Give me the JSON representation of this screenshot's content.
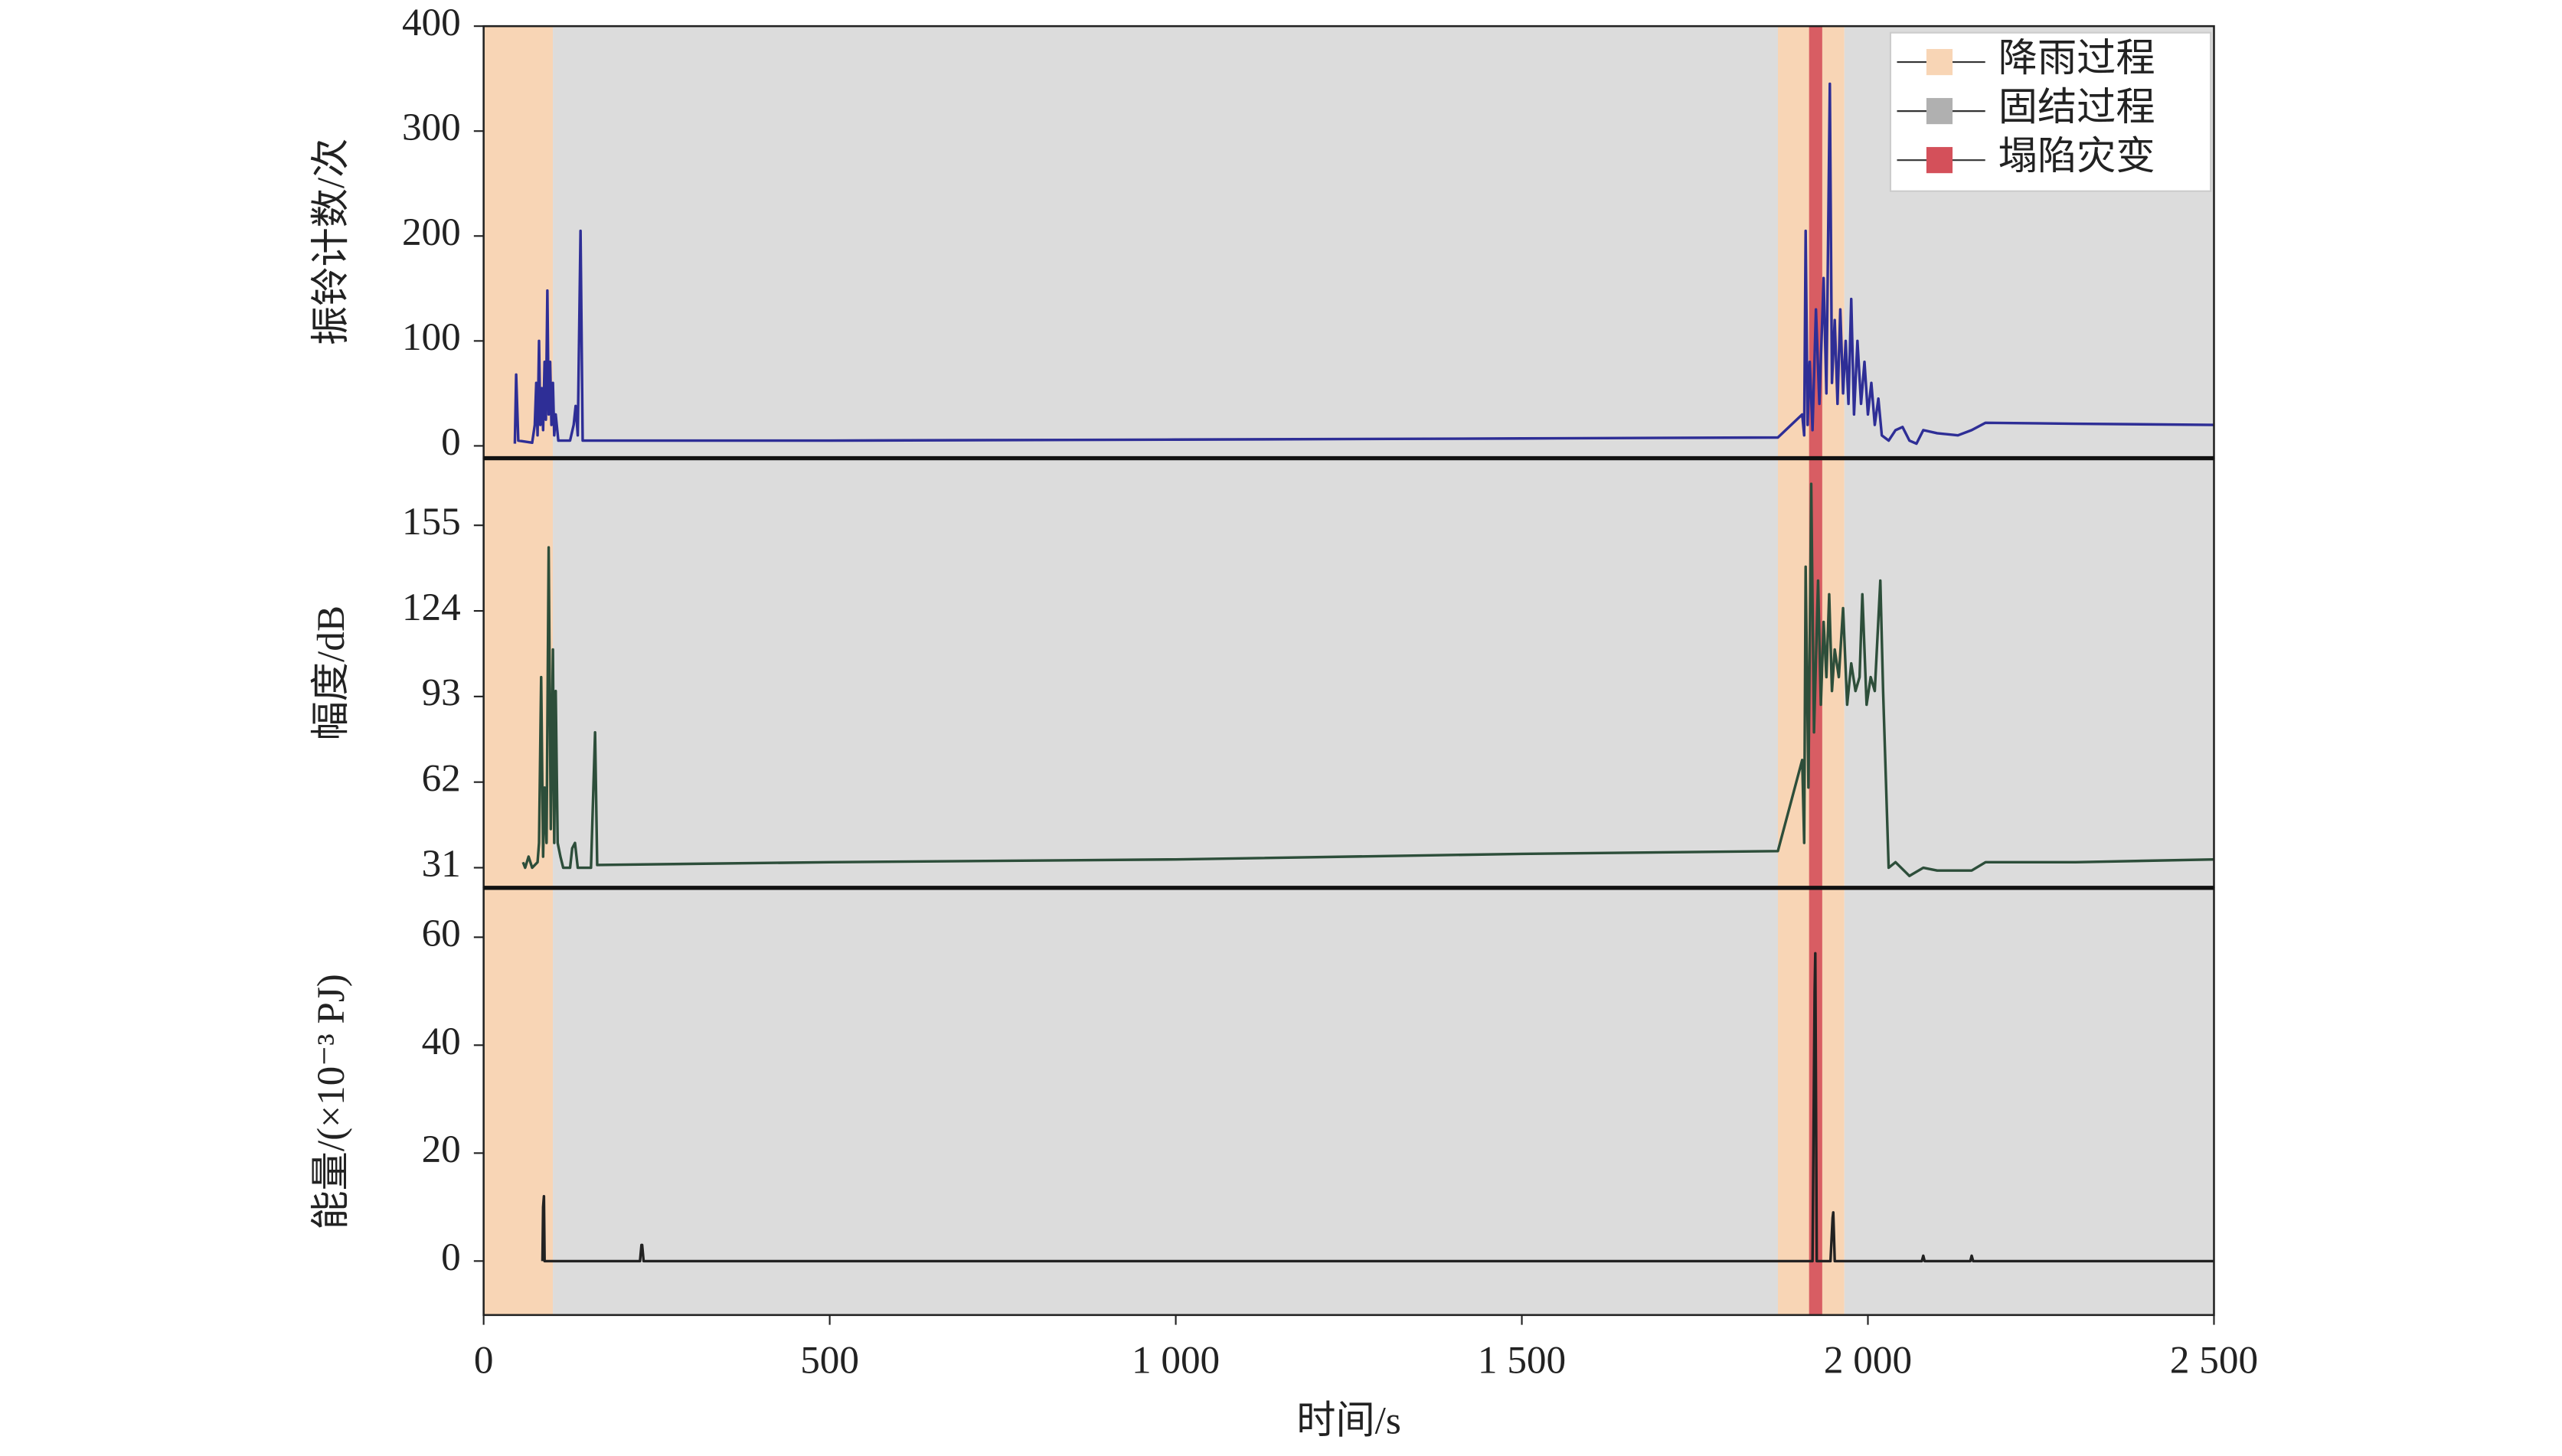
{
  "chart_data": [
    {
      "type": "line",
      "ylabel": "振铃计数/次",
      "ylim": [
        -11,
        400
      ],
      "yticks": [
        0,
        100,
        200,
        300,
        400
      ],
      "legend": "upper right",
      "regions": [
        {
          "name": "降雨过程",
          "color": "#f8d5b5",
          "spans": [
            [
              0,
              100
            ],
            [
              1870,
              1966
            ]
          ]
        },
        {
          "name": "固结过程",
          "color": "#dcdcdc",
          "spans": [
            [
              100,
              1870
            ],
            [
              1966,
              2500
            ]
          ]
        },
        {
          "name": "塌陷灾变",
          "color": "#d4505a",
          "spans": [
            [
              1915,
              1934
            ]
          ]
        }
      ],
      "color": "#2e2e96",
      "x": [
        45,
        47,
        50,
        70,
        74,
        76,
        78,
        80,
        82,
        84,
        86,
        88,
        90,
        92,
        94,
        96,
        98,
        100,
        102,
        104,
        108,
        125,
        130,
        133,
        136,
        140,
        143,
        500,
        1000,
        1500,
        1870,
        1905,
        1908,
        1910,
        1913,
        1916,
        1920,
        1925,
        1930,
        1936,
        1940,
        1945,
        1948,
        1952,
        1956,
        1960,
        1964,
        1968,
        1972,
        1976,
        1980,
        1985,
        1990,
        1995,
        2000,
        2005,
        2010,
        2015,
        2020,
        2030,
        2040,
        2050,
        2060,
        2070,
        2080,
        2100,
        2130,
        2150,
        2170,
        2300,
        2500
      ],
      "values": [
        2,
        68,
        5,
        3,
        20,
        60,
        10,
        100,
        20,
        55,
        15,
        80,
        25,
        148,
        30,
        80,
        20,
        60,
        10,
        30,
        5,
        5,
        20,
        38,
        10,
        205,
        5,
        5,
        6,
        7,
        8,
        30,
        10,
        205,
        20,
        80,
        15,
        130,
        40,
        160,
        50,
        345,
        60,
        120,
        40,
        130,
        50,
        100,
        40,
        140,
        30,
        100,
        40,
        80,
        30,
        60,
        20,
        45,
        10,
        5,
        15,
        18,
        5,
        2,
        15,
        12,
        10,
        15,
        22,
        21,
        20
      ]
    },
    {
      "type": "line",
      "ylabel": "幅度/dB",
      "ylim": [
        24,
        179
      ],
      "yticks": [
        31,
        62,
        93,
        124,
        155
      ],
      "color": "#2d4e3a",
      "x": [
        57,
        60,
        65,
        70,
        78,
        80,
        83,
        86,
        88,
        91,
        94,
        97,
        100,
        102,
        104,
        107,
        111,
        115,
        125,
        128,
        132,
        136,
        155,
        161,
        164,
        500,
        1000,
        1500,
        1870,
        1905,
        1908,
        1910,
        1914,
        1918,
        1922,
        1928,
        1932,
        1936,
        1940,
        1944,
        1948,
        1952,
        1958,
        1964,
        1970,
        1976,
        1982,
        1988,
        1992,
        1998,
        2004,
        2010,
        2018,
        2022,
        2030,
        2040,
        2060,
        2080,
        2100,
        2150,
        2170,
        2300,
        2500
      ],
      "values": [
        33,
        31,
        35,
        31,
        33,
        40,
        100,
        35,
        60,
        40,
        147,
        45,
        110,
        40,
        95,
        40,
        35,
        31,
        31,
        38,
        40,
        31,
        31,
        80,
        32,
        33,
        34,
        36,
        37,
        70,
        40,
        140,
        60,
        170,
        80,
        135,
        90,
        120,
        100,
        130,
        95,
        110,
        100,
        125,
        90,
        105,
        95,
        100,
        130,
        90,
        100,
        95,
        135,
        95,
        31,
        33,
        28,
        31,
        30,
        30,
        33,
        33,
        34
      ]
    },
    {
      "type": "line",
      "ylabel": "能量/(×10⁻³ PJ)",
      "ylim": [
        -10,
        69
      ],
      "yticks": [
        0,
        20,
        40,
        60
      ],
      "color": "#222222",
      "xlabel": "时间/s",
      "xlim": [
        0,
        2500
      ],
      "xticks": [
        0,
        500,
        {
          "value": 1000,
          "label": "1 000"
        },
        {
          "value": 1500,
          "label": "1 500"
        },
        {
          "value": 2000,
          "label": "2 000"
        },
        {
          "value": 2500,
          "label": "2 500"
        }
      ],
      "x": [
        85,
        86,
        87,
        88,
        226,
        228,
        229,
        231,
        1920,
        1923,
        1924,
        1926,
        1946,
        1949,
        1950,
        1952,
        2078,
        2080,
        2082,
        2148,
        2150,
        2152,
        2500
      ],
      "values": [
        0,
        10,
        12,
        0,
        0,
        3,
        3,
        0,
        0,
        50,
        57,
        0,
        0,
        8,
        9,
        0,
        0,
        1,
        0,
        0,
        1,
        0,
        0
      ]
    }
  ]
}
